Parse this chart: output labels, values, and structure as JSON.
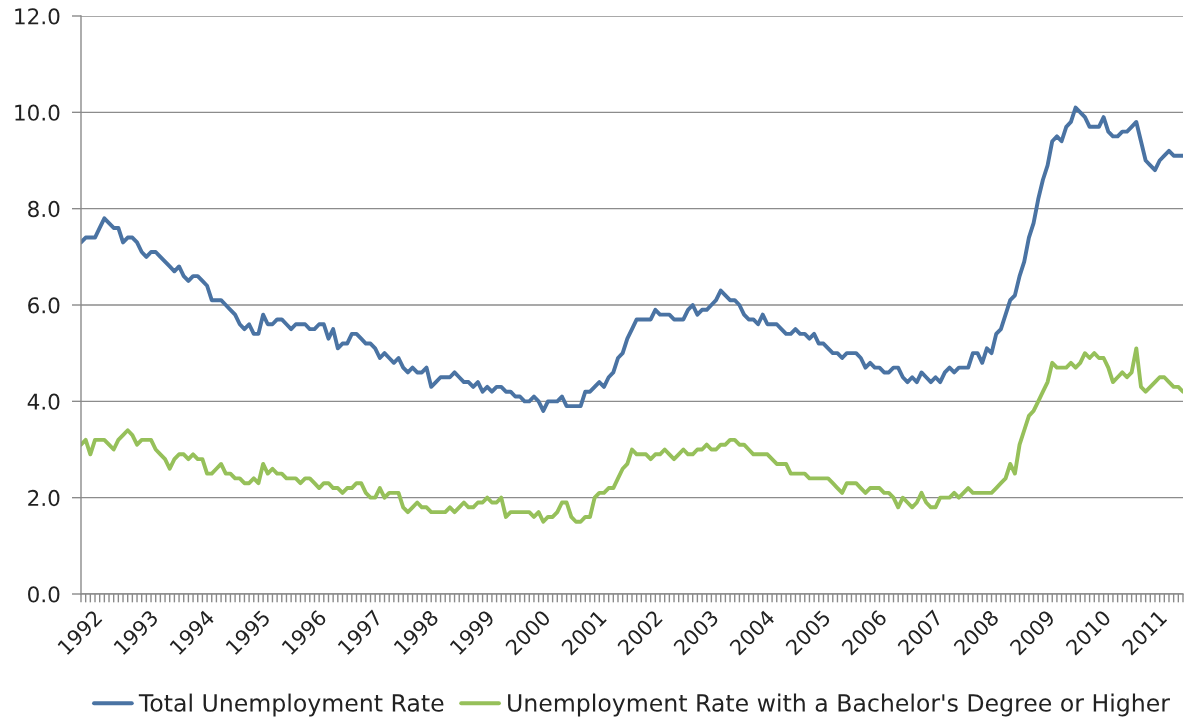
{
  "chart_data": {
    "type": "line",
    "categories": [
      "1992",
      null,
      null,
      null,
      null,
      null,
      null,
      null,
      null,
      null,
      null,
      null,
      "1993",
      null,
      null,
      null,
      null,
      null,
      null,
      null,
      null,
      null,
      null,
      null,
      "1994",
      null,
      null,
      null,
      null,
      null,
      null,
      null,
      null,
      null,
      null,
      null,
      "1995",
      null,
      null,
      null,
      null,
      null,
      null,
      null,
      null,
      null,
      null,
      null,
      "1996",
      null,
      null,
      null,
      null,
      null,
      null,
      null,
      null,
      null,
      null,
      null,
      "1997",
      null,
      null,
      null,
      null,
      null,
      null,
      null,
      null,
      null,
      null,
      null,
      "1998",
      null,
      null,
      null,
      null,
      null,
      null,
      null,
      null,
      null,
      null,
      null,
      "1999",
      null,
      null,
      null,
      null,
      null,
      null,
      null,
      null,
      null,
      null,
      null,
      "2000",
      null,
      null,
      null,
      null,
      null,
      null,
      null,
      null,
      null,
      null,
      null,
      "2001",
      null,
      null,
      null,
      null,
      null,
      null,
      null,
      null,
      null,
      null,
      null,
      "2002",
      null,
      null,
      null,
      null,
      null,
      null,
      null,
      null,
      null,
      null,
      null,
      "2003",
      null,
      null,
      null,
      null,
      null,
      null,
      null,
      null,
      null,
      null,
      null,
      "2004",
      null,
      null,
      null,
      null,
      null,
      null,
      null,
      null,
      null,
      null,
      null,
      "2005",
      null,
      null,
      null,
      null,
      null,
      null,
      null,
      null,
      null,
      null,
      null,
      "2006",
      null,
      null,
      null,
      null,
      null,
      null,
      null,
      null,
      null,
      null,
      null,
      "2007",
      null,
      null,
      null,
      null,
      null,
      null,
      null,
      null,
      null,
      null,
      null,
      "2008",
      null,
      null,
      null,
      null,
      null,
      null,
      null,
      null,
      null,
      null,
      null,
      "2009",
      null,
      null,
      null,
      null,
      null,
      null,
      null,
      null,
      null,
      null,
      null,
      "2010",
      null,
      null,
      null,
      null,
      null,
      null,
      null,
      null,
      null,
      null,
      null,
      "2011",
      null,
      null,
      null,
      null,
      null,
      null,
      null,
      null
    ],
    "series": [
      {
        "name": "Total Unemployment Rate",
        "color": "#4a73a3",
        "values": [
          7.3,
          7.4,
          7.4,
          7.4,
          7.6,
          7.8,
          7.7,
          7.6,
          7.6,
          7.3,
          7.4,
          7.4,
          7.3,
          7.1,
          7.0,
          7.1,
          7.1,
          7.0,
          6.9,
          6.8,
          6.7,
          6.8,
          6.6,
          6.5,
          6.6,
          6.6,
          6.5,
          6.4,
          6.1,
          6.1,
          6.1,
          6.0,
          5.9,
          5.8,
          5.6,
          5.5,
          5.6,
          5.4,
          5.4,
          5.8,
          5.6,
          5.6,
          5.7,
          5.7,
          5.6,
          5.5,
          5.6,
          5.6,
          5.6,
          5.5,
          5.5,
          5.6,
          5.6,
          5.3,
          5.5,
          5.1,
          5.2,
          5.2,
          5.4,
          5.4,
          5.3,
          5.2,
          5.2,
          5.1,
          4.9,
          5.0,
          4.9,
          4.8,
          4.9,
          4.7,
          4.6,
          4.7,
          4.6,
          4.6,
          4.7,
          4.3,
          4.4,
          4.5,
          4.5,
          4.5,
          4.6,
          4.5,
          4.4,
          4.4,
          4.3,
          4.4,
          4.2,
          4.3,
          4.2,
          4.3,
          4.3,
          4.2,
          4.2,
          4.1,
          4.1,
          4.0,
          4.0,
          4.1,
          4.0,
          3.8,
          4.0,
          4.0,
          4.0,
          4.1,
          3.9,
          3.9,
          3.9,
          3.9,
          4.2,
          4.2,
          4.3,
          4.4,
          4.3,
          4.5,
          4.6,
          4.9,
          5.0,
          5.3,
          5.5,
          5.7,
          5.7,
          5.7,
          5.7,
          5.9,
          5.8,
          5.8,
          5.8,
          5.7,
          5.7,
          5.7,
          5.9,
          6.0,
          5.8,
          5.9,
          5.9,
          6.0,
          6.1,
          6.3,
          6.2,
          6.1,
          6.1,
          6.0,
          5.8,
          5.7,
          5.7,
          5.6,
          5.8,
          5.6,
          5.6,
          5.6,
          5.5,
          5.4,
          5.4,
          5.5,
          5.4,
          5.4,
          5.3,
          5.4,
          5.2,
          5.2,
          5.1,
          5.0,
          5.0,
          4.9,
          5.0,
          5.0,
          5.0,
          4.9,
          4.7,
          4.8,
          4.7,
          4.7,
          4.6,
          4.6,
          4.7,
          4.7,
          4.5,
          4.4,
          4.5,
          4.4,
          4.6,
          4.5,
          4.4,
          4.5,
          4.4,
          4.6,
          4.7,
          4.6,
          4.7,
          4.7,
          4.7,
          5.0,
          5.0,
          4.8,
          5.1,
          5.0,
          5.4,
          5.5,
          5.8,
          6.1,
          6.2,
          6.6,
          6.9,
          7.4,
          7.7,
          8.2,
          8.6,
          8.9,
          9.4,
          9.5,
          9.4,
          9.7,
          9.8,
          10.1,
          10.0,
          9.9,
          9.7,
          9.7,
          9.7,
          9.9,
          9.6,
          9.5,
          9.5,
          9.6,
          9.6,
          9.7,
          9.8,
          9.4,
          9.0,
          8.9,
          8.8,
          9.0,
          9.1,
          9.2,
          9.1,
          9.1,
          9.1
        ]
      },
      {
        "name": "Unemployment Rate with a Bachelor's Degree or Higher",
        "color": "#96c05a",
        "values": [
          3.1,
          3.2,
          2.9,
          3.2,
          3.2,
          3.2,
          3.1,
          3.0,
          3.2,
          3.3,
          3.4,
          3.3,
          3.1,
          3.2,
          3.2,
          3.2,
          3.0,
          2.9,
          2.8,
          2.6,
          2.8,
          2.9,
          2.9,
          2.8,
          2.9,
          2.8,
          2.8,
          2.5,
          2.5,
          2.6,
          2.7,
          2.5,
          2.5,
          2.4,
          2.4,
          2.3,
          2.3,
          2.4,
          2.3,
          2.7,
          2.5,
          2.6,
          2.5,
          2.5,
          2.4,
          2.4,
          2.4,
          2.3,
          2.4,
          2.4,
          2.3,
          2.2,
          2.3,
          2.3,
          2.2,
          2.2,
          2.1,
          2.2,
          2.2,
          2.3,
          2.3,
          2.1,
          2.0,
          2.0,
          2.2,
          2.0,
          2.1,
          2.1,
          2.1,
          1.8,
          1.7,
          1.8,
          1.9,
          1.8,
          1.8,
          1.7,
          1.7,
          1.7,
          1.7,
          1.8,
          1.7,
          1.8,
          1.9,
          1.8,
          1.8,
          1.9,
          1.9,
          2.0,
          1.9,
          1.9,
          2.0,
          1.6,
          1.7,
          1.7,
          1.7,
          1.7,
          1.7,
          1.6,
          1.7,
          1.5,
          1.6,
          1.6,
          1.7,
          1.9,
          1.9,
          1.6,
          1.5,
          1.5,
          1.6,
          1.6,
          2.0,
          2.1,
          2.1,
          2.2,
          2.2,
          2.4,
          2.6,
          2.7,
          3.0,
          2.9,
          2.9,
          2.9,
          2.8,
          2.9,
          2.9,
          3.0,
          2.9,
          2.8,
          2.9,
          3.0,
          2.9,
          2.9,
          3.0,
          3.0,
          3.1,
          3.0,
          3.0,
          3.1,
          3.1,
          3.2,
          3.2,
          3.1,
          3.1,
          3.0,
          2.9,
          2.9,
          2.9,
          2.9,
          2.8,
          2.7,
          2.7,
          2.7,
          2.5,
          2.5,
          2.5,
          2.5,
          2.4,
          2.4,
          2.4,
          2.4,
          2.4,
          2.3,
          2.2,
          2.1,
          2.3,
          2.3,
          2.3,
          2.2,
          2.1,
          2.2,
          2.2,
          2.2,
          2.1,
          2.1,
          2.0,
          1.8,
          2.0,
          1.9,
          1.8,
          1.9,
          2.1,
          1.9,
          1.8,
          1.8,
          2.0,
          2.0,
          2.0,
          2.1,
          2.0,
          2.1,
          2.2,
          2.1,
          2.1,
          2.1,
          2.1,
          2.1,
          2.2,
          2.3,
          2.4,
          2.7,
          2.5,
          3.1,
          3.4,
          3.7,
          3.8,
          4.0,
          4.2,
          4.4,
          4.8,
          4.7,
          4.7,
          4.7,
          4.8,
          4.7,
          4.8,
          5.0,
          4.9,
          5.0,
          4.9,
          4.9,
          4.7,
          4.4,
          4.5,
          4.6,
          4.5,
          4.6,
          5.1,
          4.3,
          4.2,
          4.3,
          4.4,
          4.5,
          4.5,
          4.4,
          4.3,
          4.3,
          4.2
        ]
      }
    ],
    "ylim": [
      0,
      12
    ],
    "yticks": [
      {
        "value": 0,
        "label": "0.0"
      },
      {
        "value": 2,
        "label": "2.0"
      },
      {
        "value": 4,
        "label": "4.0"
      },
      {
        "value": 6,
        "label": "6.0"
      },
      {
        "value": 8,
        "label": "8.0"
      },
      {
        "value": 10,
        "label": "10.0"
      },
      {
        "value": 12,
        "label": "12.0"
      }
    ],
    "grid": "y",
    "legend": "bottom",
    "marker": "none",
    "line_style": "solid"
  }
}
